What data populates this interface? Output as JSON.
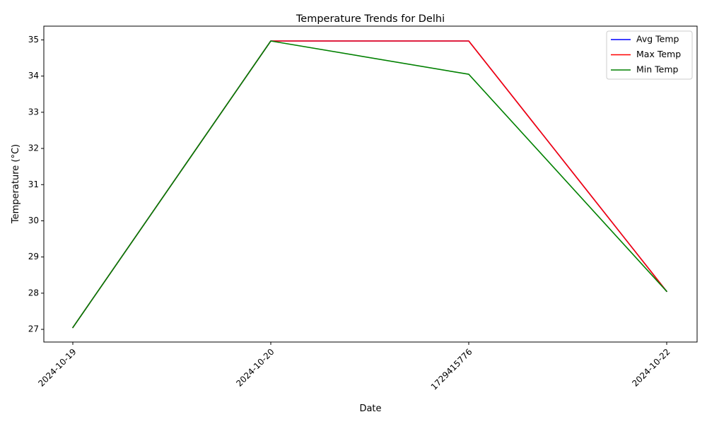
{
  "chart_data": {
    "type": "line",
    "title": "Temperature Trends for Delhi",
    "xlabel": "Date",
    "ylabel": "Temperature (°C)",
    "categories": [
      "2024-10-19",
      "2024-10-20",
      "1729415776",
      "2024-10-22"
    ],
    "ylim": [
      26.65,
      35.38
    ],
    "yticks": [
      27,
      28,
      29,
      30,
      31,
      32,
      33,
      34,
      35
    ],
    "grid": false,
    "legend_position": "top-right",
    "series": [
      {
        "name": "Avg Temp",
        "color": "#0000ff",
        "values": [
          27.05,
          34.97,
          34.97,
          28.05
        ]
      },
      {
        "name": "Max Temp",
        "color": "#ff0000",
        "values": [
          27.05,
          34.97,
          34.97,
          28.05
        ]
      },
      {
        "name": "Min Temp",
        "color": "#008000",
        "values": [
          27.05,
          34.97,
          34.05,
          28.05
        ]
      }
    ]
  }
}
